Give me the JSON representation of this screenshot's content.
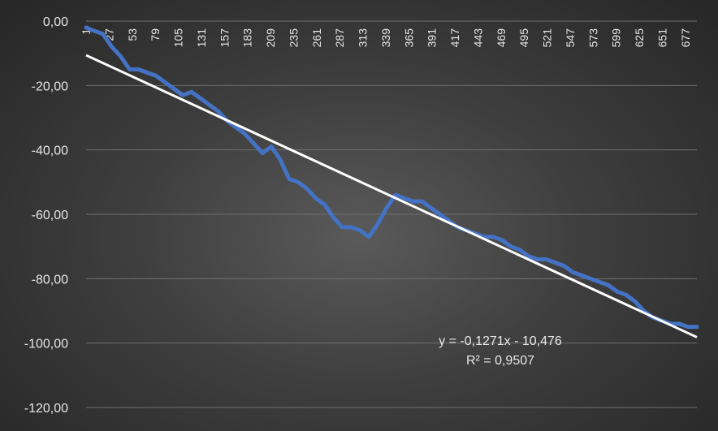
{
  "chart_data": {
    "type": "line",
    "title": "",
    "xlabel": "",
    "ylabel": "",
    "ylim": [
      -120,
      0
    ],
    "xlim": [
      1,
      690
    ],
    "grid": true,
    "y_ticks": [
      0,
      -20,
      -40,
      -60,
      -80,
      -100,
      -120
    ],
    "y_tick_labels": [
      "0,00",
      "-20,00",
      "-40,00",
      "-60,00",
      "-80,00",
      "-100,00",
      "-120,00"
    ],
    "x_tick_labels": [
      "1",
      "27",
      "53",
      "79",
      "105",
      "131",
      "157",
      "183",
      "209",
      "235",
      "261",
      "287",
      "313",
      "339",
      "365",
      "391",
      "417",
      "443",
      "469",
      "495",
      "521",
      "547",
      "573",
      "599",
      "625",
      "651",
      "677"
    ],
    "colors": {
      "series": "#4472c4",
      "trendline": "#ffffff",
      "background": "#3a3a3a"
    },
    "series": [
      {
        "x": [
          1,
          10,
          20,
          30,
          40,
          50,
          60,
          70,
          80,
          90,
          100,
          110,
          120,
          130,
          140,
          150,
          160,
          170,
          180,
          190,
          200,
          210,
          220,
          230,
          240,
          250,
          260,
          270,
          280,
          290,
          300,
          310,
          320,
          330,
          340,
          350,
          360,
          370,
          380,
          390,
          400,
          410,
          420,
          430,
          440,
          450,
          460,
          470,
          480,
          490,
          500,
          510,
          520,
          530,
          540,
          550,
          560,
          570,
          580,
          590,
          600,
          610,
          620,
          630,
          640,
          650,
          660,
          670,
          680,
          690
        ],
        "y": [
          -2,
          -3,
          -4,
          -8,
          -11,
          -15,
          -15,
          -16,
          -17,
          -19,
          -21,
          -23,
          -22,
          -24,
          -26,
          -28,
          -31,
          -33,
          -35,
          -38,
          -41,
          -39,
          -43,
          -49,
          -50,
          -52,
          -55,
          -57,
          -61,
          -64,
          -64,
          -65,
          -67,
          -63,
          -58,
          -54,
          -55,
          -56,
          -56,
          -58,
          -60,
          -62,
          -64,
          -65,
          -66,
          -67,
          -67,
          -68,
          -70,
          -71,
          -73,
          -74,
          -74,
          -75,
          -76,
          -78,
          -79,
          -80,
          -81,
          -82,
          -84,
          -85,
          -87,
          -90,
          -92,
          -93,
          -94,
          -94,
          -95,
          -95
        ]
      }
    ],
    "trendline": {
      "slope": -0.1271,
      "intercept": -10.476,
      "equation": "y = -0,1271x - 10,476",
      "r_squared": "R² = 0,9507"
    }
  }
}
